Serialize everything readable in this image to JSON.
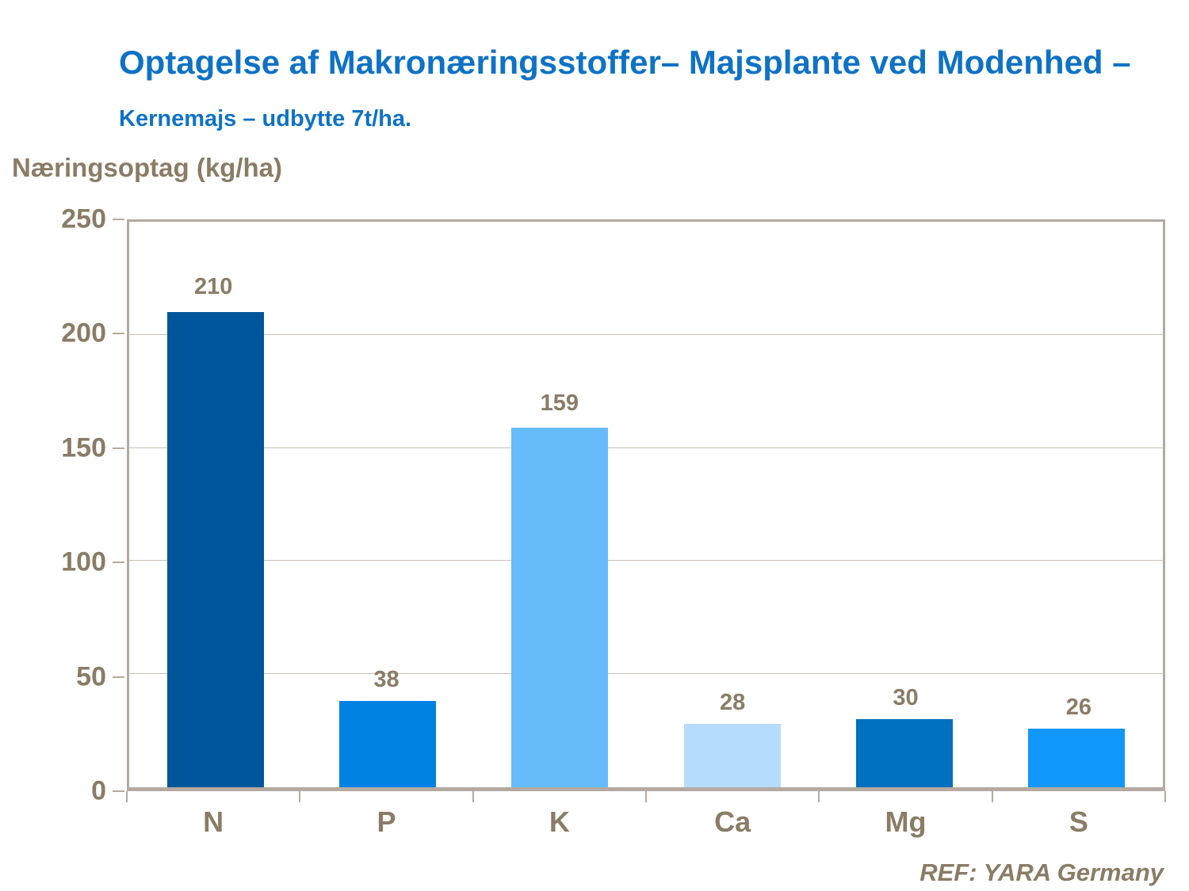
{
  "title": {
    "main": "Optagelse af Makronæringsstoffer– Majsplante ved Modenhed – ",
    "sub": "Kernemajs – udbytte 7t/ha."
  },
  "y_axis_title": "Næringsoptag (kg/ha)",
  "footer": "REF: YARA Germany",
  "colors": {
    "title_blue": "#0E72C6",
    "label_brown": "#8A7C65",
    "axis_tan": "#B4AAA0",
    "gridline": "#C8BFB4"
  },
  "chart_data": {
    "type": "bar",
    "categories": [
      "N",
      "P",
      "K",
      "Ca",
      "Mg",
      "S"
    ],
    "values": [
      210,
      38,
      159,
      28,
      30,
      26
    ],
    "bar_colors": [
      "#00569B",
      "#0082E3",
      "#66BBFB",
      "#B5DCFD",
      "#0070C0",
      "#1196FC"
    ],
    "title": "Optagelse af Makronæringsstoffer– Majsplante ved Modenhed – Kernemajs – udbytte 7t/ha.",
    "xlabel": "",
    "ylabel": "Næringsoptag (kg/ha)",
    "ylim": [
      0,
      250
    ],
    "yticks": [
      0,
      50,
      100,
      150,
      200,
      250
    ],
    "grid": true,
    "legend": false
  }
}
